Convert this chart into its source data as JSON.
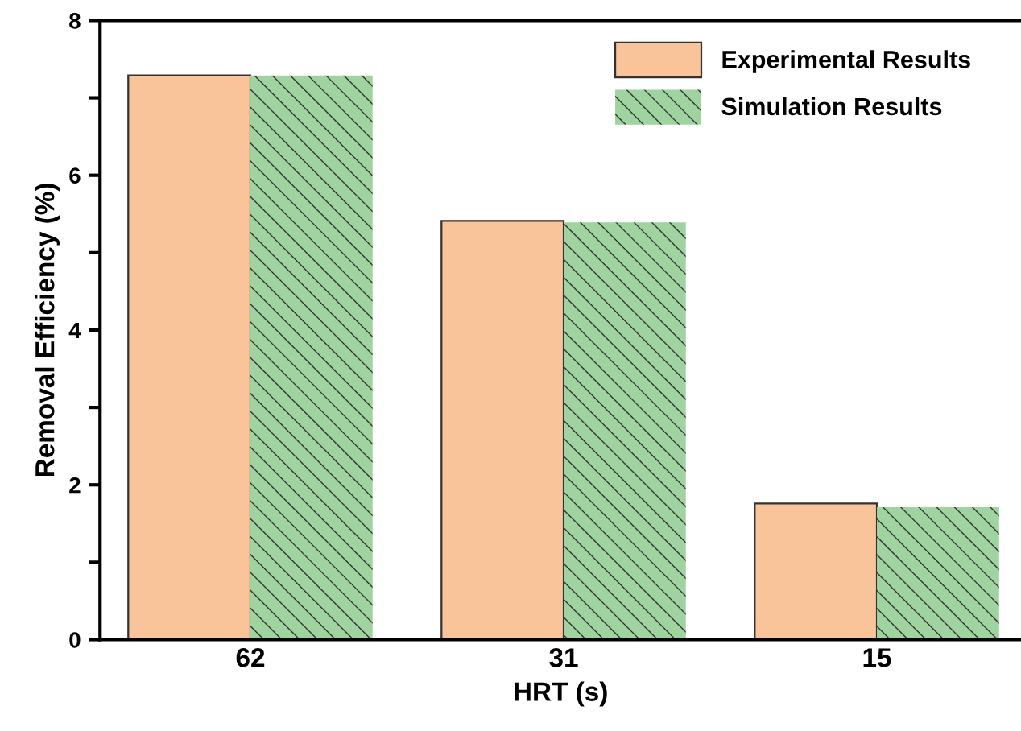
{
  "chart_data": {
    "type": "bar",
    "xlabel": "HRT (s)",
    "ylabel": "Removal Efficiency (%)",
    "categories": [
      "62",
      "31",
      "15"
    ],
    "series": [
      {
        "name": "Experimental Results",
        "color": "#f9c499",
        "values": [
          7.29,
          5.41,
          1.76
        ]
      },
      {
        "name": "Simulation Results",
        "color": "#9fd39f",
        "values": [
          7.29,
          5.39,
          1.71
        ]
      }
    ],
    "ylim": [
      0,
      8
    ],
    "yticks": [
      0,
      {
        "value": 1,
        "label": null
      },
      2,
      {
        "value": 3,
        "label": null
      },
      4,
      {
        "value": 5,
        "label": null
      },
      6,
      {
        "value": 7,
        "label": null
      },
      8
    ],
    "grid": false,
    "legend": "top right"
  }
}
